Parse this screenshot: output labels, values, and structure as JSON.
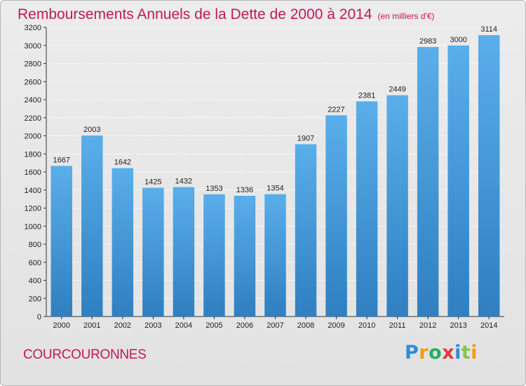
{
  "title": "Remboursements Annuels de la Dette de 2000 à 2014",
  "unit_note": "(en milliers d'€)",
  "city": "COURCOURONNES",
  "logo": {
    "letters": [
      {
        "char": "P",
        "color": "#2e8bd8"
      },
      {
        "char": "r",
        "color": "#f39c12"
      },
      {
        "char": "o",
        "color": "#27ae60"
      },
      {
        "char": "x",
        "color": "#e53935"
      },
      {
        "char": "i",
        "color": "#2e8bd8"
      },
      {
        "char": "t",
        "color": "#8bc34a"
      },
      {
        "char": "i",
        "color": "#f39c12"
      }
    ]
  },
  "colors": {
    "bar_top": "#5aaeea",
    "bar_bottom": "#2f7fc1",
    "title": "#c2185b",
    "grid": "#ffffff"
  },
  "chart_data": {
    "type": "bar",
    "title": "Remboursements Annuels de la Dette de 2000 à 2014",
    "categories": [
      "2000",
      "2001",
      "2002",
      "2003",
      "2004",
      "2005",
      "2006",
      "2007",
      "2008",
      "2009",
      "2010",
      "2011",
      "2012",
      "2013",
      "2014"
    ],
    "values": [
      1667,
      2003,
      1642,
      1425,
      1432,
      1353,
      1336,
      1354,
      1907,
      2227,
      2381,
      2449,
      2983,
      3000,
      3114
    ],
    "ylim": [
      0,
      3200
    ],
    "yticks": [
      0,
      200,
      400,
      600,
      800,
      1000,
      1200,
      1400,
      1600,
      1800,
      2000,
      2200,
      2400,
      2600,
      2800,
      3000,
      3200
    ],
    "grid": true
  }
}
